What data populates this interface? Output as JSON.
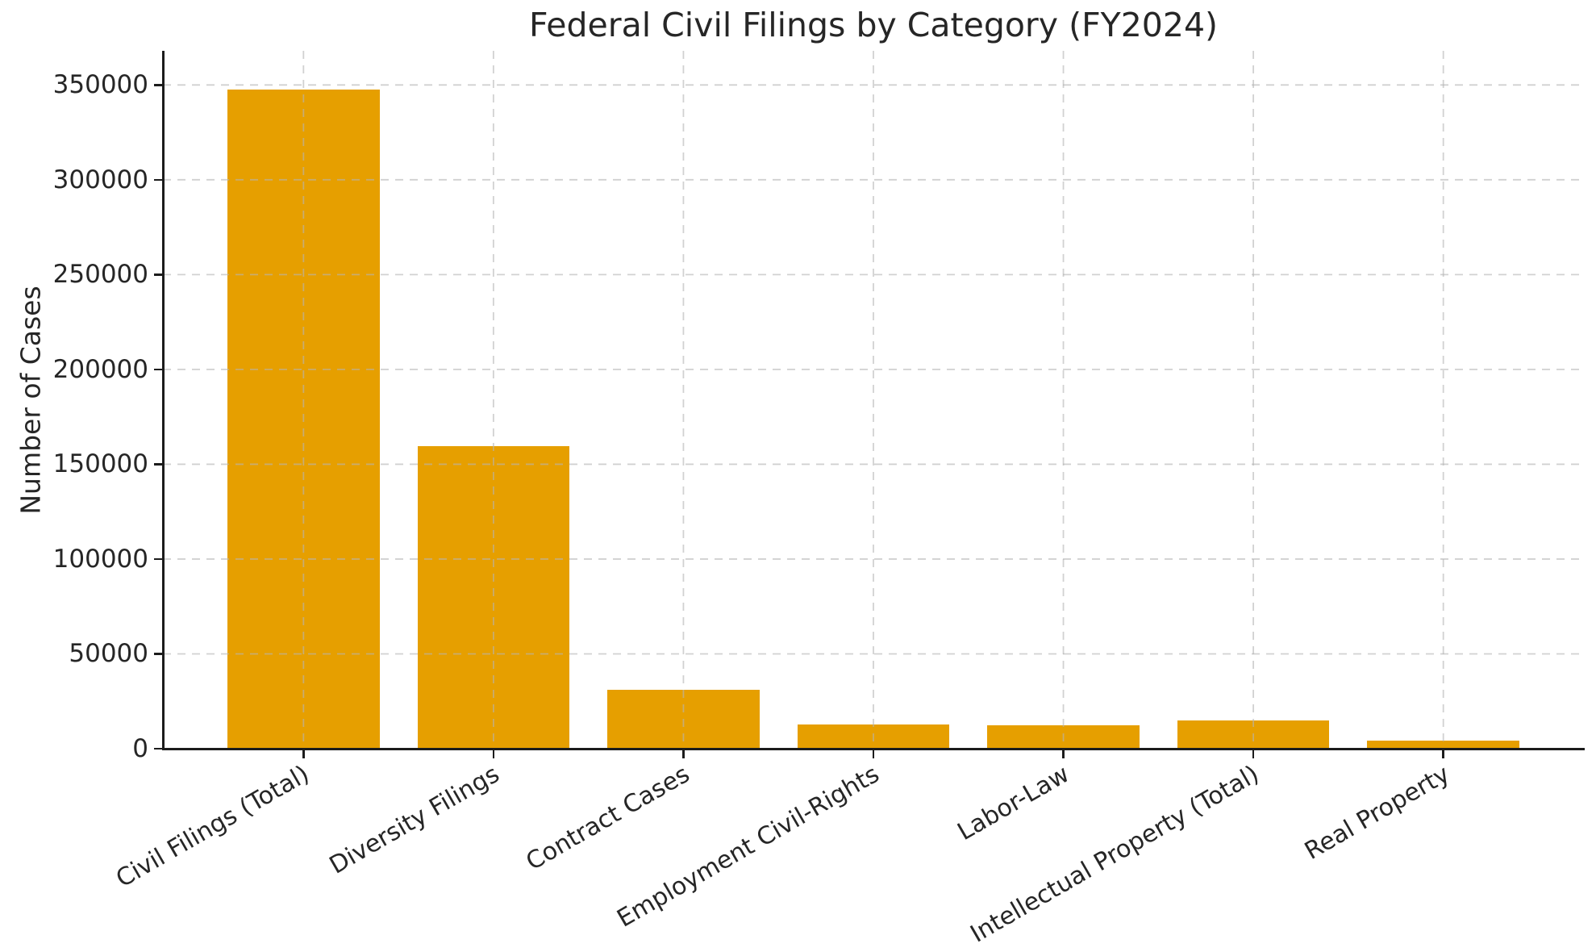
{
  "chart_data": {
    "type": "bar",
    "title": "Federal Civil Filings by Category (FY2024)",
    "xlabel": "",
    "ylabel": "Number of Cases",
    "categories": [
      "Civil Filings (Total)",
      "Diversity Filings",
      "Contract Cases",
      "Employment Civil-Rights",
      "Labor-Law",
      "Intellectual Property (Total)",
      "Real Property"
    ],
    "values": [
      347500,
      159600,
      31000,
      12800,
      12400,
      14900,
      4300
    ],
    "yticks": [
      0,
      50000,
      100000,
      150000,
      200000,
      250000,
      300000,
      350000
    ],
    "ylim": [
      0,
      368000
    ],
    "x_tick_rotation_deg": 30,
    "grid": true,
    "grid_style": "dashed",
    "legend": "none",
    "colors": {
      "bar": "#E69F00",
      "axis": "#1c1c1c",
      "text": "#262626",
      "grid": "#b4b4b4",
      "background": "#ffffff"
    }
  }
}
